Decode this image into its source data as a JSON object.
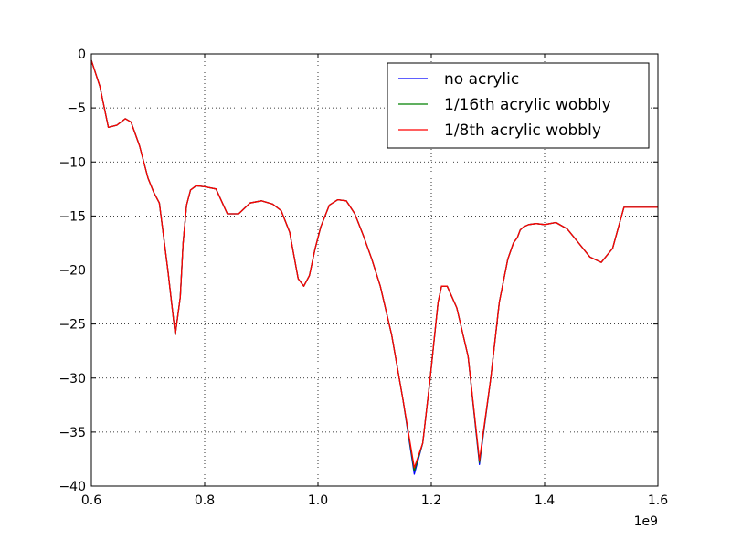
{
  "chart_data": {
    "type": "line",
    "xlim": [
      600000000,
      1600000000
    ],
    "ylim": [
      -40,
      0
    ],
    "x_offset_label": "1e9",
    "x_ticks": [
      0.6,
      0.8,
      1.0,
      1.2,
      1.4,
      1.6
    ],
    "x_tick_labels": [
      "0.6",
      "0.8",
      "1.0",
      "1.2",
      "1.4",
      "1.6"
    ],
    "y_ticks": [
      0,
      -5,
      -10,
      -15,
      -20,
      -25,
      -30,
      -35,
      -40
    ],
    "y_tick_labels": [
      "0",
      "−5",
      "−10",
      "−15",
      "−20",
      "−25",
      "−30",
      "−35",
      "−40"
    ],
    "grid": true,
    "legend_position": "upper-right",
    "series": [
      {
        "name": "no acrylic",
        "color": "#0000ff",
        "x": [
          600000000,
          615000000,
          630000000,
          645000000,
          660000000,
          670000000,
          685000000,
          700000000,
          710000000,
          720000000,
          735000000,
          748000000,
          757000000,
          762000000,
          768000000,
          775000000,
          785000000,
          800000000,
          820000000,
          840000000,
          860000000,
          880000000,
          900000000,
          920000000,
          935000000,
          950000000,
          965000000,
          975000000,
          985000000,
          995000000,
          1005000000,
          1020000000,
          1035000000,
          1050000000,
          1065000000,
          1080000000,
          1095000000,
          1110000000,
          1130000000,
          1150000000,
          1170000000,
          1185000000,
          1198000000,
          1206000000,
          1212000000,
          1218000000,
          1228000000,
          1245000000,
          1265000000,
          1285000000,
          1305000000,
          1320000000,
          1335000000,
          1345000000,
          1352000000,
          1357000000,
          1363000000,
          1372000000,
          1385000000,
          1400000000,
          1420000000,
          1440000000,
          1460000000,
          1480000000,
          1500000000,
          1520000000,
          1540000000,
          1560000000,
          1570000000,
          1580000000,
          1600000000
        ],
        "y": [
          -0.6,
          -3.0,
          -6.8,
          -6.6,
          -6.0,
          -6.3,
          -8.5,
          -11.5,
          -12.8,
          -13.8,
          -20.0,
          -26.0,
          -22.5,
          -17.5,
          -14.0,
          -12.6,
          -12.2,
          -12.3,
          -12.5,
          -14.8,
          -14.8,
          -13.8,
          -13.6,
          -13.9,
          -14.5,
          -16.5,
          -20.8,
          -21.5,
          -20.5,
          -18.0,
          -16.0,
          -14.0,
          -13.5,
          -13.6,
          -14.8,
          -16.8,
          -19.0,
          -21.5,
          -26.0,
          -32.0,
          -38.9,
          -36.0,
          -30.0,
          -26.0,
          -23.0,
          -21.5,
          -21.5,
          -23.5,
          -28.0,
          -38.0,
          -30.0,
          -23.0,
          -19.0,
          -17.5,
          -17.0,
          -16.3,
          -16.0,
          -15.8,
          -15.7,
          -15.8,
          -15.6,
          -16.2,
          -17.5,
          -18.8,
          -19.3,
          -18.0,
          -14.2,
          -14.2,
          -14.2,
          -14.2,
          -14.2
        ],
        "y_min_values_shown": [
          -26.6,
          -38.9,
          -38.0
        ]
      },
      {
        "name": "1/16th acrylic wobbly",
        "color": "#008000",
        "x": [
          600000000,
          615000000,
          630000000,
          645000000,
          660000000,
          670000000,
          685000000,
          700000000,
          710000000,
          720000000,
          735000000,
          748000000,
          757000000,
          762000000,
          768000000,
          775000000,
          785000000,
          800000000,
          820000000,
          840000000,
          860000000,
          880000000,
          900000000,
          920000000,
          935000000,
          950000000,
          965000000,
          975000000,
          985000000,
          995000000,
          1005000000,
          1020000000,
          1035000000,
          1050000000,
          1065000000,
          1080000000,
          1095000000,
          1110000000,
          1130000000,
          1150000000,
          1170000000,
          1185000000,
          1198000000,
          1206000000,
          1212000000,
          1218000000,
          1228000000,
          1245000000,
          1265000000,
          1285000000,
          1305000000,
          1320000000,
          1335000000,
          1345000000,
          1352000000,
          1357000000,
          1363000000,
          1372000000,
          1385000000,
          1400000000,
          1420000000,
          1440000000,
          1460000000,
          1480000000,
          1500000000,
          1520000000,
          1540000000,
          1560000000,
          1570000000,
          1580000000,
          1600000000
        ],
        "y": [
          -0.6,
          -3.0,
          -6.8,
          -6.6,
          -6.0,
          -6.3,
          -8.5,
          -11.5,
          -12.8,
          -13.8,
          -20.0,
          -26.0,
          -22.5,
          -17.5,
          -14.0,
          -12.6,
          -12.2,
          -12.3,
          -12.5,
          -14.8,
          -14.8,
          -13.8,
          -13.6,
          -13.9,
          -14.5,
          -16.5,
          -20.8,
          -21.5,
          -20.5,
          -18.0,
          -16.0,
          -14.0,
          -13.5,
          -13.6,
          -14.8,
          -16.8,
          -19.0,
          -21.5,
          -26.0,
          -32.0,
          -38.6,
          -36.0,
          -30.0,
          -26.0,
          -23.0,
          -21.5,
          -21.5,
          -23.5,
          -28.0,
          -37.8,
          -30.0,
          -23.0,
          -19.0,
          -17.5,
          -17.0,
          -16.3,
          -16.0,
          -15.8,
          -15.7,
          -15.8,
          -15.6,
          -16.2,
          -17.5,
          -18.8,
          -19.3,
          -18.0,
          -14.2,
          -14.2,
          -14.2,
          -14.2,
          -14.2
        ]
      },
      {
        "name": "1/8th acrylic wobbly",
        "color": "#ff0000",
        "x": [
          600000000,
          615000000,
          630000000,
          645000000,
          660000000,
          670000000,
          685000000,
          700000000,
          710000000,
          720000000,
          735000000,
          748000000,
          757000000,
          762000000,
          768000000,
          775000000,
          785000000,
          800000000,
          820000000,
          840000000,
          860000000,
          880000000,
          900000000,
          920000000,
          935000000,
          950000000,
          965000000,
          975000000,
          985000000,
          995000000,
          1005000000,
          1020000000,
          1035000000,
          1050000000,
          1065000000,
          1080000000,
          1095000000,
          1110000000,
          1130000000,
          1150000000,
          1170000000,
          1185000000,
          1198000000,
          1206000000,
          1212000000,
          1218000000,
          1228000000,
          1245000000,
          1265000000,
          1285000000,
          1305000000,
          1320000000,
          1335000000,
          1345000000,
          1352000000,
          1357000000,
          1363000000,
          1372000000,
          1385000000,
          1400000000,
          1420000000,
          1440000000,
          1460000000,
          1480000000,
          1500000000,
          1520000000,
          1540000000,
          1560000000,
          1570000000,
          1580000000,
          1600000000
        ],
        "y": [
          -0.6,
          -3.0,
          -6.8,
          -6.6,
          -6.0,
          -6.3,
          -8.5,
          -11.5,
          -12.8,
          -13.8,
          -20.0,
          -26.0,
          -22.5,
          -17.5,
          -14.0,
          -12.6,
          -12.2,
          -12.3,
          -12.5,
          -14.8,
          -14.8,
          -13.8,
          -13.6,
          -13.9,
          -14.5,
          -16.5,
          -20.8,
          -21.5,
          -20.5,
          -18.0,
          -16.0,
          -14.0,
          -13.5,
          -13.6,
          -14.8,
          -16.8,
          -19.0,
          -21.5,
          -26.0,
          -32.0,
          -38.3,
          -36.0,
          -30.0,
          -26.0,
          -23.0,
          -21.5,
          -21.5,
          -23.5,
          -28.0,
          -37.6,
          -30.0,
          -23.0,
          -19.0,
          -17.5,
          -17.0,
          -16.3,
          -16.0,
          -15.8,
          -15.7,
          -15.8,
          -15.6,
          -16.2,
          -17.5,
          -18.8,
          -19.3,
          -18.0,
          -14.2,
          -14.2,
          -14.2,
          -14.2,
          -14.2
        ]
      }
    ]
  }
}
